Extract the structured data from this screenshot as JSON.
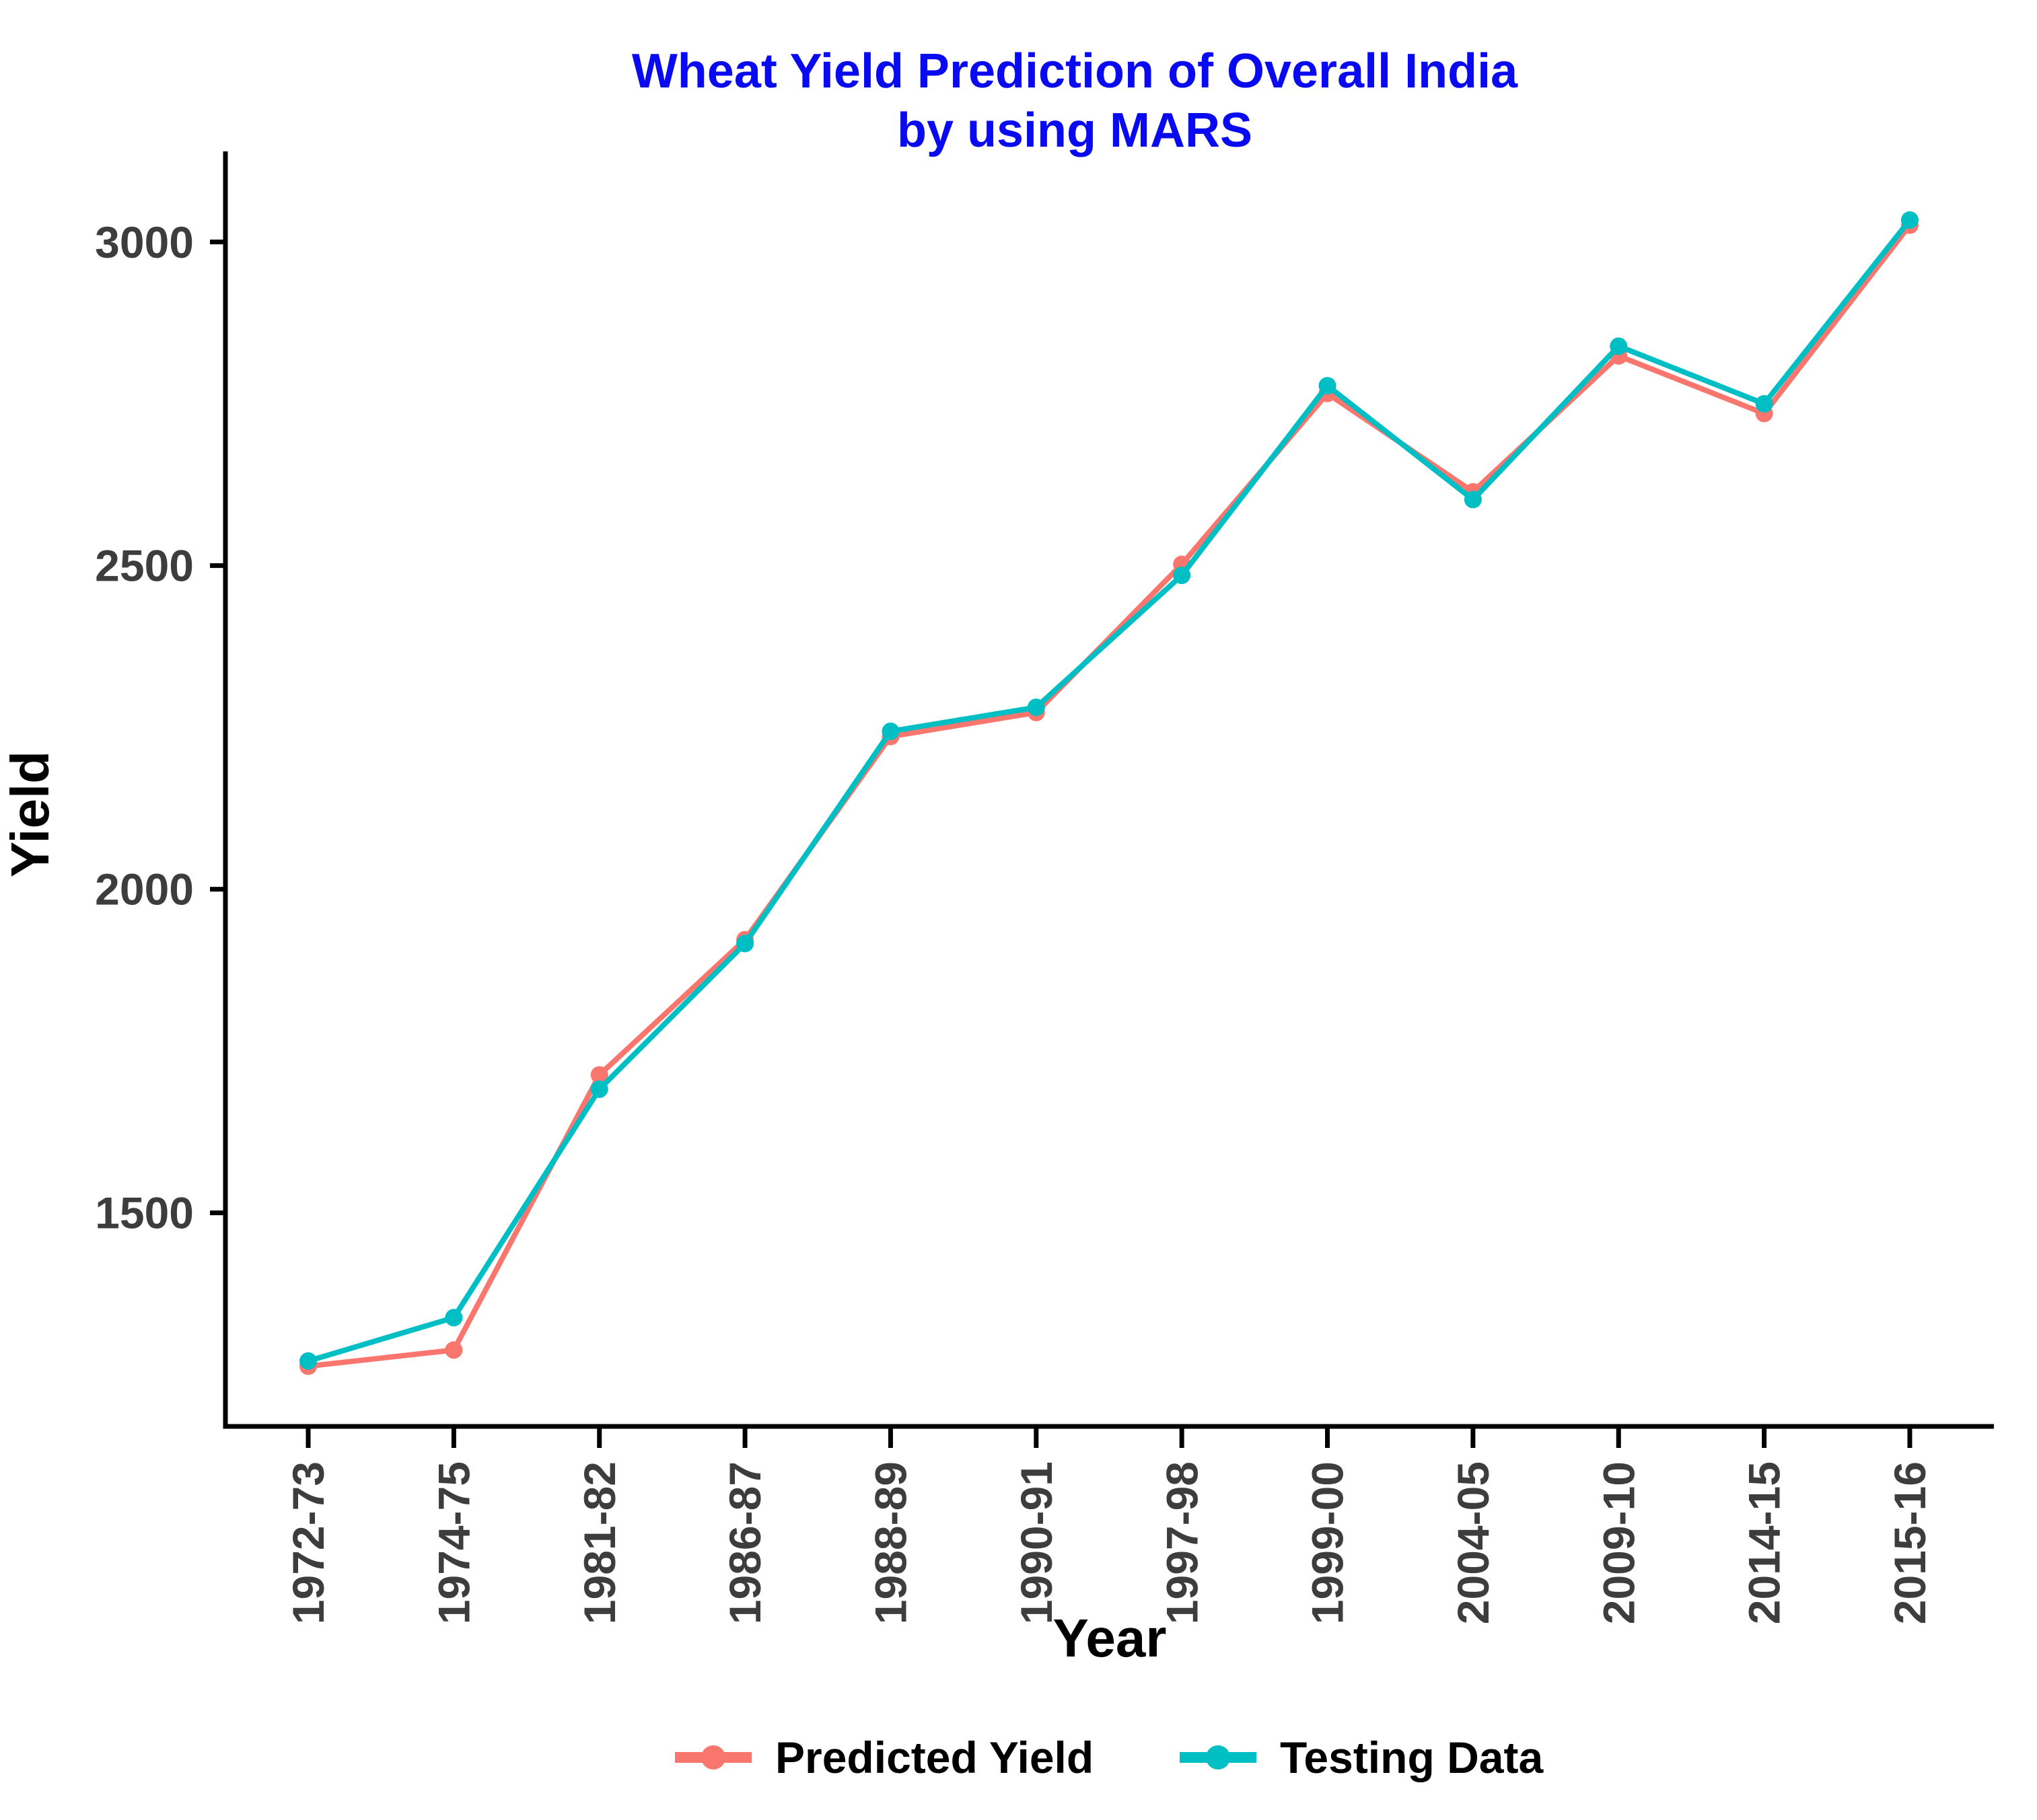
{
  "title": {
    "line1": "Wheat Yield Prediction of Overall India",
    "line2": "by using MARS",
    "color": "#0A0AF0"
  },
  "axes": {
    "x_title": "Year",
    "y_title": "Yield",
    "y_tick_labels": [
      "1500",
      "2000",
      "2500",
      "3000"
    ]
  },
  "colors": {
    "title_blue": "#0A0AF0",
    "predicted_series": "#F8766D",
    "testing_series": "#00BFC4",
    "axis_line": "#000000",
    "axis_text": "#3d3d3d"
  },
  "legend": [
    {
      "label": "Predicted Yield",
      "color": "#F8766D"
    },
    {
      "label": "Testing Data",
      "color": "#00BFC4"
    }
  ],
  "chart_data": {
    "type": "line",
    "title": "Wheat Yield Prediction of Overall India by using MARS",
    "xlabel": "Year",
    "ylabel": "Yield",
    "categories": [
      "1972-73",
      "1974-75",
      "1981-82",
      "1986-87",
      "1988-89",
      "1990-91",
      "1997-98",
      "1999-00",
      "2004-05",
      "2009-10",
      "2014-15",
      "2015-16"
    ],
    "series": [
      {
        "name": "Predicted Yield",
        "color": "#F8766D",
        "values": [
          1263,
          1288,
          1713,
          1922,
          2236,
          2273,
          2502,
          2766,
          2614,
          2824,
          2735,
          3026
        ]
      },
      {
        "name": "Testing Data",
        "color": "#00BFC4",
        "values": [
          1271,
          1338,
          1691,
          1916,
          2244,
          2281,
          2485,
          2778,
          2602,
          2839,
          2750,
          3034
        ]
      }
    ],
    "y_ticks": [
      1500,
      2000,
      2500,
      3000
    ],
    "ylim": [
      1170,
      3140
    ],
    "grid": false,
    "legend_position": "bottom"
  }
}
